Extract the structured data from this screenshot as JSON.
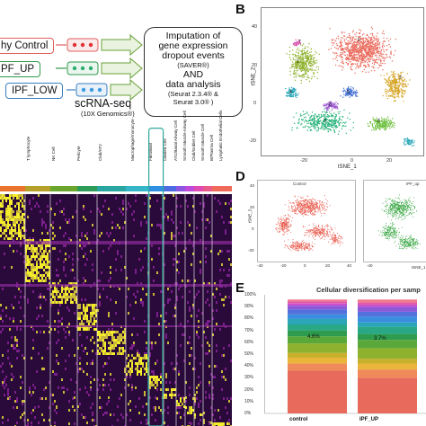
{
  "panelA": {
    "groups": [
      {
        "label": "hy Control",
        "color": "#e06060",
        "dot": "#e03030"
      },
      {
        "label": "PF_UP",
        "color": "#2e9a4a",
        "dot": "#2bb06a"
      },
      {
        "label": "IPF_LOW",
        "color": "#3a7fc0",
        "dot": "#3a9ae0"
      }
    ],
    "sc_label": "scRNA-seq",
    "sc_sub": "(10X Genomics®)",
    "box_line1": "Imputation of",
    "box_line2": "gene expression",
    "box_line3": "dropout events",
    "box_line4": "(SAVER®)",
    "box_line5": "AND",
    "box_line6": "data analysis",
    "box_line7": "(Seurat 2.3.4® &",
    "box_line8": "Seurat 3.0® )"
  },
  "panelB": {
    "letter": "B",
    "ylabel": "tSNE_2",
    "xlabel": "tSNE_1",
    "xticks": [
      "-20",
      "0",
      "20"
    ],
    "yticks": [
      "40",
      "20",
      "0",
      "-20"
    ],
    "clusters": [
      {
        "id": "0",
        "color": "#ea6a5c"
      },
      {
        "id": "1",
        "color": "#8fb22e"
      },
      {
        "id": "2",
        "color": "#d7a72a"
      },
      {
        "id": "3",
        "color": "#25b27a"
      },
      {
        "id": "4",
        "color": "#2aa8b8"
      },
      {
        "id": "5",
        "color": "#4a76d4"
      },
      {
        "id": "6",
        "color": "#9b59d0"
      },
      {
        "id": "7",
        "color": "#e05ab6"
      },
      {
        "id": "8",
        "color": "#6bbf3a"
      }
    ]
  },
  "panelD": {
    "letter": "D",
    "left_title": "Control",
    "right_title": "IPF_up",
    "ylabel": "tSNE_2",
    "xlabel": "tSNE_1",
    "xticks": [
      "-40",
      "-20",
      "0",
      "20",
      "40",
      "-40"
    ],
    "yticks": [
      "40",
      "20",
      "0",
      "-20"
    ]
  },
  "panelE": {
    "letter": "E",
    "title": "Cellular diversification  per samp",
    "yticks": [
      "100%",
      "90%",
      "80%",
      "70%",
      "60%",
      "50%",
      "40%",
      "30%",
      "20%",
      "10%",
      "0%"
    ],
    "categories": [
      "control",
      "IPF_UP"
    ],
    "annotation_control": "4.6%",
    "annotation_ipf": "3.7%"
  },
  "heatmap": {
    "columns": [
      "T lymphocyte",
      "NK Cell",
      "Pericyte",
      "Club/AT2",
      "Macrophage/monocyte",
      "Fibroblast",
      "Ciliated Cell",
      "AT1/Basal Airway Cell",
      "Smooth Muscle Airway Cell",
      "Club/Goblet Cell",
      "Smooth Muscle Cell",
      "B/Plasma Cell",
      "Lymphatic Endothelial Cells"
    ],
    "bar_colors": [
      "#e8742e",
      "#b5a12a",
      "#6aa62e",
      "#2e9c58",
      "#2aa6a2",
      "#34b6c8",
      "#2f8fe0",
      "#4d6be0",
      "#8c56e0",
      "#c04ad8",
      "#e04ab4",
      "#e85a88",
      "#f06a5a"
    ],
    "color_scale_low": "#2a0a3a",
    "color_scale_mid": "#7a1e8a",
    "color_scale_high": "#f3ec2a"
  }
}
